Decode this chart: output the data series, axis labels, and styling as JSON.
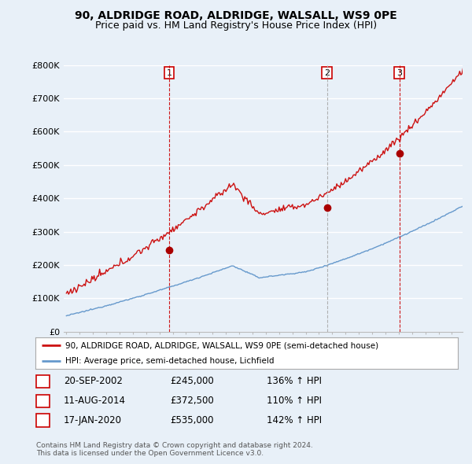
{
  "title": "90, ALDRIDGE ROAD, ALDRIDGE, WALSALL, WS9 0PE",
  "subtitle": "Price paid vs. HM Land Registry's House Price Index (HPI)",
  "ylabel_ticks": [
    "£0",
    "£100K",
    "£200K",
    "£300K",
    "£400K",
    "£500K",
    "£600K",
    "£700K",
    "£800K"
  ],
  "ylim": [
    0,
    800000
  ],
  "xlim_start": 1995.0,
  "xlim_end": 2025.0,
  "background_color": "#e8f0f8",
  "plot_bg_color": "#e8f0f8",
  "grid_color": "#ffffff",
  "sale_points": [
    {
      "date_num": 2002.72,
      "price": 245000,
      "label": "1",
      "vline_color": "#cc0000",
      "vline_style": "--"
    },
    {
      "date_num": 2014.61,
      "price": 372500,
      "label": "2",
      "vline_color": "#aaaaaa",
      "vline_style": "--"
    },
    {
      "date_num": 2020.04,
      "price": 535000,
      "label": "3",
      "vline_color": "#cc0000",
      "vline_style": "--"
    }
  ],
  "sale_marker_color": "#aa0000",
  "hpi_line_color": "#6699cc",
  "price_line_color": "#cc1111",
  "legend_label_price": "90, ALDRIDGE ROAD, ALDRIDGE, WALSALL, WS9 0PE (semi-detached house)",
  "legend_label_hpi": "HPI: Average price, semi-detached house, Lichfield",
  "table_rows": [
    {
      "num": "1",
      "date": "20-SEP-2002",
      "price": "£245,000",
      "hpi": "136% ↑ HPI"
    },
    {
      "num": "2",
      "date": "11-AUG-2014",
      "price": "£372,500",
      "hpi": "110% ↑ HPI"
    },
    {
      "num": "3",
      "date": "17-JAN-2020",
      "price": "£535,000",
      "hpi": "142% ↑ HPI"
    }
  ],
  "footer": "Contains HM Land Registry data © Crown copyright and database right 2024.\nThis data is licensed under the Open Government Licence v3.0.",
  "title_fontsize": 10,
  "subtitle_fontsize": 9
}
